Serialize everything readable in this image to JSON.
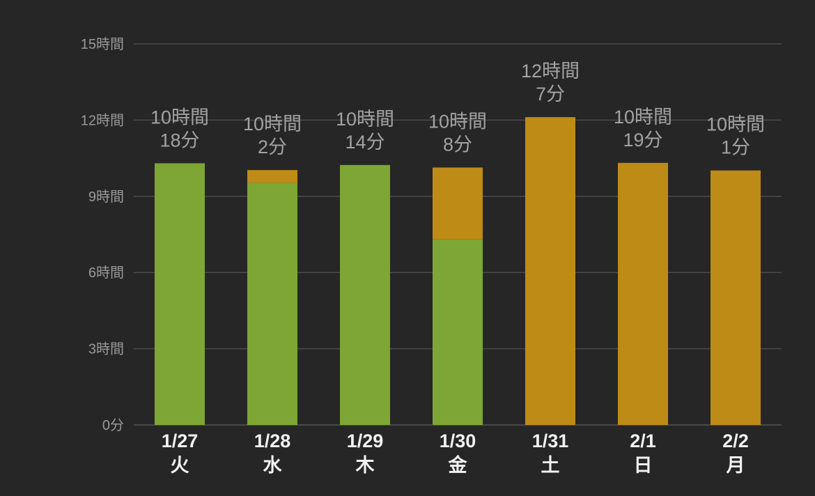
{
  "chart_data": {
    "type": "bar",
    "stacked": true,
    "unit": "minutes",
    "ylim": [
      0,
      900
    ],
    "yticks": [
      {
        "value": 0,
        "label": "0分"
      },
      {
        "value": 180,
        "label": "3時間"
      },
      {
        "value": 360,
        "label": "6時間"
      },
      {
        "value": 540,
        "label": "9時間"
      },
      {
        "value": 720,
        "label": "12時間"
      },
      {
        "value": 900,
        "label": "15時間"
      }
    ],
    "categories": [
      {
        "date": "1/27",
        "day": "火"
      },
      {
        "date": "1/28",
        "day": "水"
      },
      {
        "date": "1/29",
        "day": "木"
      },
      {
        "date": "1/30",
        "day": "金"
      },
      {
        "date": "1/31",
        "day": "土"
      },
      {
        "date": "2/1",
        "day": "日"
      },
      {
        "date": "2/2",
        "day": "月"
      }
    ],
    "series": [
      {
        "name": "green",
        "color": "#7ea634",
        "values": [
          618,
          572,
          614,
          438,
          0,
          0,
          0
        ]
      },
      {
        "name": "orange",
        "color": "#bd8b16",
        "values": [
          0,
          30,
          0,
          170,
          727,
          619,
          601
        ]
      }
    ],
    "totals": [
      [
        "10時間",
        "18分"
      ],
      [
        "10時間",
        "2分"
      ],
      [
        "10時間",
        "14分"
      ],
      [
        "10時間",
        "8分"
      ],
      [
        "12時間",
        "7分"
      ],
      [
        "10時間",
        "19分"
      ],
      [
        "10時間",
        "1分"
      ]
    ],
    "grid": true,
    "grid_color": "#4a4a4a",
    "background": "#262626"
  }
}
